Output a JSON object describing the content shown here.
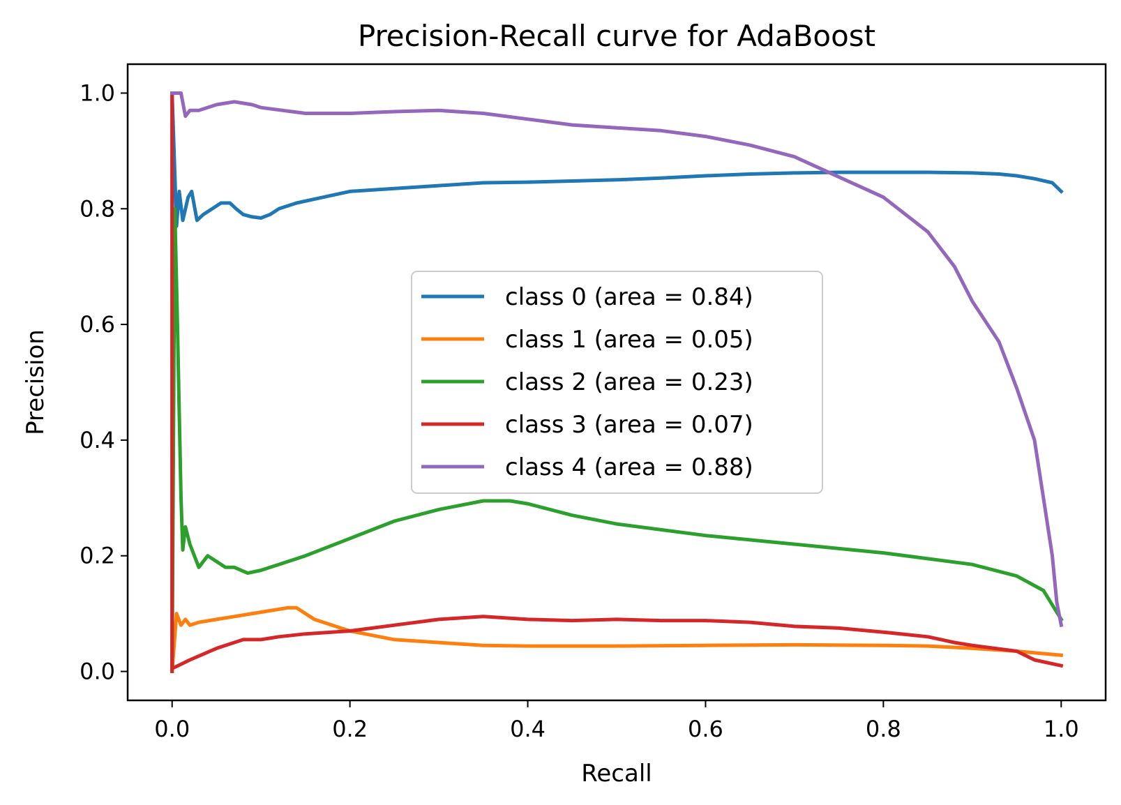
{
  "chart_data": {
    "type": "line",
    "title": "Precision-Recall curve for AdaBoost",
    "xlabel": "Recall",
    "ylabel": "Precision",
    "xlim": [
      -0.05,
      1.05
    ],
    "ylim": [
      -0.05,
      1.05
    ],
    "xticks": [
      "0.0",
      "0.2",
      "0.4",
      "0.6",
      "0.8",
      "1.0"
    ],
    "yticks": [
      "0.0",
      "0.2",
      "0.4",
      "0.6",
      "0.8",
      "1.0"
    ],
    "grid": false,
    "legend_position": "center",
    "series": [
      {
        "name": "class 0 (area = 0.84)",
        "color": "#1f77b4",
        "x": [
          0.0,
          0.0,
          0.005,
          0.008,
          0.012,
          0.018,
          0.022,
          0.028,
          0.035,
          0.045,
          0.055,
          0.065,
          0.072,
          0.08,
          0.09,
          0.1,
          0.11,
          0.12,
          0.14,
          0.17,
          0.2,
          0.25,
          0.3,
          0.35,
          0.4,
          0.45,
          0.5,
          0.55,
          0.6,
          0.65,
          0.7,
          0.75,
          0.8,
          0.85,
          0.9,
          0.93,
          0.95,
          0.97,
          0.99,
          1.0
        ],
        "y": [
          0.0,
          1.0,
          0.77,
          0.83,
          0.78,
          0.82,
          0.83,
          0.78,
          0.79,
          0.8,
          0.81,
          0.81,
          0.8,
          0.79,
          0.786,
          0.784,
          0.79,
          0.8,
          0.81,
          0.82,
          0.83,
          0.835,
          0.84,
          0.845,
          0.846,
          0.848,
          0.85,
          0.853,
          0.857,
          0.86,
          0.862,
          0.863,
          0.863,
          0.863,
          0.862,
          0.86,
          0.857,
          0.852,
          0.845,
          0.83
        ]
      },
      {
        "name": "class 1 (area = 0.05)",
        "color": "#ff7f0e",
        "x": [
          0.0,
          0.005,
          0.01,
          0.015,
          0.02,
          0.03,
          0.05,
          0.07,
          0.09,
          0.11,
          0.13,
          0.14,
          0.15,
          0.16,
          0.18,
          0.2,
          0.25,
          0.3,
          0.35,
          0.4,
          0.5,
          0.6,
          0.7,
          0.8,
          0.85,
          0.9,
          0.95,
          1.0
        ],
        "y": [
          0.0,
          0.1,
          0.08,
          0.09,
          0.08,
          0.085,
          0.09,
          0.095,
          0.1,
          0.105,
          0.11,
          0.11,
          0.1,
          0.09,
          0.08,
          0.07,
          0.055,
          0.05,
          0.045,
          0.044,
          0.044,
          0.045,
          0.046,
          0.045,
          0.044,
          0.04,
          0.035,
          0.028
        ]
      },
      {
        "name": "class 2 (area = 0.23)",
        "color": "#2ca02c",
        "x": [
          0.0,
          0.003,
          0.006,
          0.008,
          0.01,
          0.012,
          0.015,
          0.02,
          0.025,
          0.03,
          0.04,
          0.05,
          0.06,
          0.07,
          0.085,
          0.1,
          0.12,
          0.15,
          0.2,
          0.25,
          0.3,
          0.35,
          0.38,
          0.4,
          0.45,
          0.5,
          0.6,
          0.7,
          0.8,
          0.9,
          0.95,
          0.98,
          1.0
        ],
        "y": [
          0.0,
          0.8,
          0.6,
          0.45,
          0.3,
          0.21,
          0.25,
          0.22,
          0.2,
          0.18,
          0.2,
          0.19,
          0.18,
          0.18,
          0.17,
          0.175,
          0.185,
          0.2,
          0.23,
          0.26,
          0.28,
          0.295,
          0.295,
          0.29,
          0.27,
          0.255,
          0.235,
          0.22,
          0.205,
          0.185,
          0.165,
          0.14,
          0.09
        ]
      },
      {
        "name": "class 3 (area = 0.07)",
        "color": "#d62728",
        "x": [
          0.0,
          0.0,
          0.0,
          0.02,
          0.05,
          0.08,
          0.1,
          0.12,
          0.15,
          0.2,
          0.25,
          0.3,
          0.35,
          0.4,
          0.45,
          0.5,
          0.55,
          0.6,
          0.65,
          0.7,
          0.75,
          0.8,
          0.85,
          0.88,
          0.9,
          0.95,
          0.97,
          1.0
        ],
        "y": [
          1.0,
          0.0,
          0.005,
          0.02,
          0.04,
          0.055,
          0.055,
          0.06,
          0.065,
          0.07,
          0.08,
          0.09,
          0.095,
          0.09,
          0.088,
          0.09,
          0.088,
          0.088,
          0.085,
          0.078,
          0.075,
          0.068,
          0.06,
          0.05,
          0.045,
          0.035,
          0.02,
          0.01
        ]
      },
      {
        "name": "class 4 (area = 0.88)",
        "color": "#9467bd",
        "x": [
          0.0,
          0.01,
          0.015,
          0.02,
          0.03,
          0.05,
          0.07,
          0.09,
          0.1,
          0.15,
          0.2,
          0.25,
          0.3,
          0.35,
          0.4,
          0.45,
          0.5,
          0.55,
          0.6,
          0.65,
          0.7,
          0.75,
          0.8,
          0.85,
          0.88,
          0.9,
          0.93,
          0.95,
          0.97,
          0.98,
          0.99,
          0.995,
          1.0
        ],
        "y": [
          1.0,
          1.0,
          0.96,
          0.97,
          0.97,
          0.98,
          0.985,
          0.98,
          0.975,
          0.965,
          0.965,
          0.968,
          0.97,
          0.965,
          0.955,
          0.945,
          0.94,
          0.935,
          0.925,
          0.91,
          0.89,
          0.855,
          0.82,
          0.76,
          0.7,
          0.64,
          0.57,
          0.49,
          0.4,
          0.3,
          0.2,
          0.12,
          0.08
        ]
      }
    ]
  }
}
